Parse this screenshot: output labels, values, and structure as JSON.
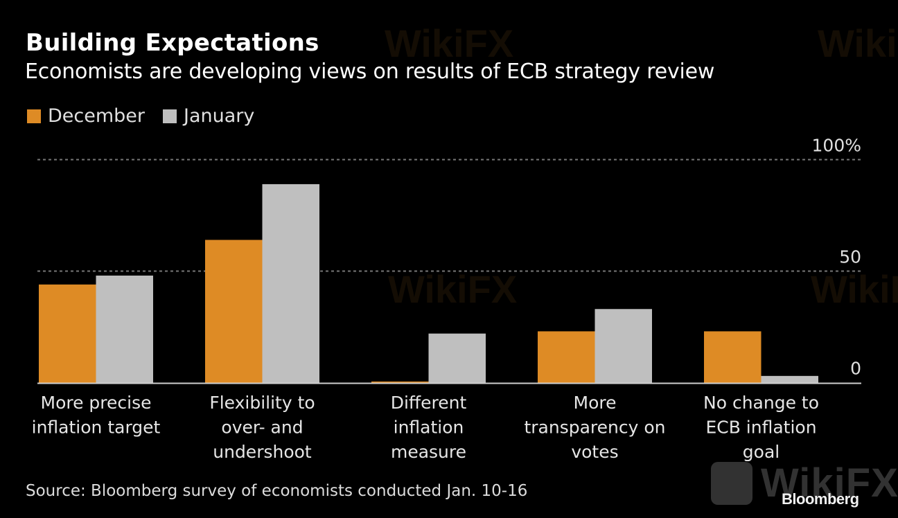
{
  "header": {
    "title": "Building Expectations",
    "subtitle": "Economists are developing views on results of ECB strategy review"
  },
  "footer": {
    "source": "Source: Bloomberg survey of economists conducted Jan. 10-16",
    "brand": "Bloomberg"
  },
  "watermark": {
    "text": "WikiFX"
  },
  "colors": {
    "background": "#000000",
    "december": "#de8b25",
    "january": "#bfbfbf",
    "gridline": "#777777",
    "axis": "#cfcfcf",
    "text": "#e6e6e6"
  },
  "chart_data": {
    "type": "bar",
    "title": "Building Expectations",
    "subtitle": "Economists are developing views on results of ECB strategy review",
    "xlabel": "",
    "ylabel": "",
    "ylim": [
      0,
      100
    ],
    "yticks": [
      {
        "value": 0,
        "label": "0"
      },
      {
        "value": 50,
        "label": "50"
      },
      {
        "value": 100,
        "label": "100%"
      }
    ],
    "grid": true,
    "legend_position": "top-left",
    "categories": [
      [
        "More precise",
        "inflation target"
      ],
      [
        "Flexibility to",
        "over- and",
        "undershoot"
      ],
      [
        "Different",
        "inflation",
        "measure"
      ],
      [
        "More",
        "transparency on",
        "votes"
      ],
      [
        "No change to",
        "ECB inflation",
        "goal"
      ]
    ],
    "series": [
      {
        "name": "December",
        "color": "#de8b25",
        "values": [
          44,
          64,
          0.5,
          23,
          23
        ]
      },
      {
        "name": "January",
        "color": "#bfbfbf",
        "values": [
          48,
          89,
          22,
          33,
          3
        ]
      }
    ]
  }
}
